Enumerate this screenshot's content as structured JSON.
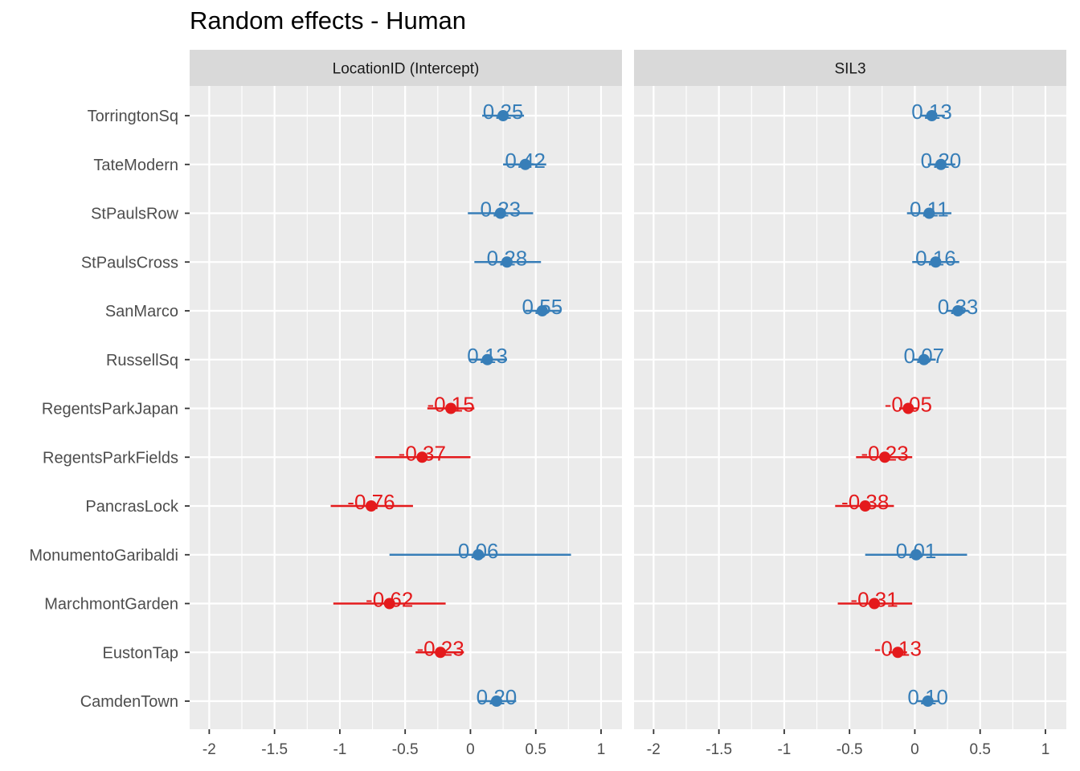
{
  "chart_data": {
    "type": "scatter",
    "title": "Random effects - Human",
    "categories": [
      "TorringtonSq",
      "TateModern",
      "StPaulsRow",
      "StPaulsCross",
      "SanMarco",
      "RussellSq",
      "RegentsParkJapan",
      "RegentsParkFields",
      "PancrasLock",
      "MonumentoGaribaldi",
      "MarchmontGarden",
      "EustonTap",
      "CamdenTown"
    ],
    "xlim": [
      -2.15,
      1.16
    ],
    "x_ticks": [
      -2,
      -1.5,
      -1,
      -0.5,
      0,
      0.5,
      1
    ],
    "x_tick_labels": [
      "-2",
      "-1.5",
      "-1",
      "-0.5",
      "0",
      "0.5",
      "1"
    ],
    "grid": true,
    "legend": "none",
    "panels": [
      {
        "strip_label": "LocationID (Intercept)",
        "values": [
          0.25,
          0.42,
          0.23,
          0.28,
          0.55,
          0.13,
          -0.15,
          -0.37,
          -0.76,
          0.06,
          -0.62,
          -0.23,
          0.2
        ],
        "labels": [
          "0.25",
          "0.42",
          "0.23",
          "0.28",
          "0.55",
          "0.13",
          "-0.15",
          "-0.37",
          "-0.76",
          "0.06",
          "-0.62",
          "-0.23",
          "0.20"
        ],
        "lower": [
          0.09,
          0.25,
          -0.02,
          0.03,
          0.42,
          -0.01,
          -0.33,
          -0.73,
          -1.07,
          -0.62,
          -1.05,
          -0.42,
          0.06
        ],
        "upper": [
          0.41,
          0.58,
          0.48,
          0.54,
          0.69,
          0.28,
          0.03,
          0.0,
          -0.44,
          0.77,
          -0.19,
          -0.05,
          0.35
        ]
      },
      {
        "strip_label": "SIL3",
        "values": [
          0.13,
          0.2,
          0.11,
          0.16,
          0.33,
          0.07,
          -0.05,
          -0.23,
          -0.38,
          0.01,
          -0.31,
          -0.13,
          0.1
        ],
        "labels": [
          "0.13",
          "0.20",
          "0.11",
          "0.16",
          "0.33",
          "0.07",
          "-0.05",
          "-0.23",
          "-0.38",
          "0.01",
          "-0.31",
          "-0.13",
          "0.10"
        ],
        "lower": [
          0.04,
          0.1,
          -0.06,
          -0.02,
          0.24,
          -0.01,
          -0.12,
          -0.45,
          -0.61,
          -0.38,
          -0.59,
          -0.2,
          0.02
        ],
        "upper": [
          0.23,
          0.31,
          0.28,
          0.34,
          0.41,
          0.16,
          0.03,
          -0.02,
          -0.16,
          0.4,
          -0.02,
          -0.06,
          0.19
        ]
      }
    ],
    "colors": {
      "positive": "#377eb8",
      "negative": "#e41a1c",
      "panel_bg": "#ebebeb",
      "strip_bg": "#d9d9d9",
      "grid": "#ffffff"
    }
  }
}
